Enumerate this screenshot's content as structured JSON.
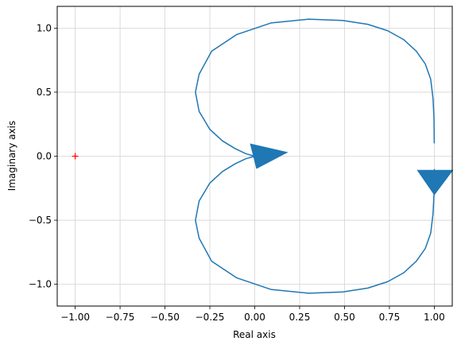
{
  "chart_data": {
    "type": "line",
    "title": "",
    "xlabel": "Real axis",
    "ylabel": "Imaginary axis",
    "xlim": [
      -1.1,
      1.1
    ],
    "ylim": [
      -1.17,
      1.17
    ],
    "grid": true,
    "x_ticks": [
      -1.0,
      -0.75,
      -0.5,
      -0.25,
      0.0,
      0.25,
      0.5,
      0.75,
      1.0
    ],
    "x_tick_labels": [
      "−1.00",
      "−0.75",
      "−0.50",
      "−0.25",
      "0.00",
      "0.25",
      "0.50",
      "0.75",
      "1.00"
    ],
    "y_ticks": [
      -1.0,
      -0.5,
      0.0,
      0.5,
      1.0
    ],
    "y_tick_labels": [
      "−1.0",
      "−0.5",
      "0.0",
      "0.5",
      "1.0"
    ],
    "colors": {
      "curve": "#1f77b4",
      "critical_point": "#ff0000",
      "grid": "#d3d3d3"
    },
    "series": [
      {
        "x": [
          1.0,
          0.998,
          0.993,
          0.98,
          0.95,
          0.9,
          0.83,
          0.74,
          0.63,
          0.49,
          0.3,
          0.09,
          -0.1,
          -0.24,
          -0.31,
          -0.33,
          -0.31,
          -0.25,
          -0.18,
          -0.11,
          -0.05,
          0.0
        ],
        "y": [
          0.1,
          0.3,
          0.45,
          0.6,
          0.72,
          0.82,
          0.91,
          0.98,
          1.03,
          1.06,
          1.07,
          1.04,
          0.95,
          0.82,
          0.64,
          0.5,
          0.35,
          0.21,
          0.12,
          0.06,
          0.02,
          0.0
        ]
      },
      {
        "x": [
          0.0,
          -0.05,
          -0.11,
          -0.18,
          -0.25,
          -0.31,
          -0.33,
          -0.31,
          -0.24,
          -0.1,
          0.09,
          0.3,
          0.49,
          0.63,
          0.74,
          0.83,
          0.9,
          0.95,
          0.98,
          0.993,
          0.998,
          1.0
        ],
        "y": [
          0.0,
          -0.02,
          -0.06,
          -0.12,
          -0.21,
          -0.35,
          -0.5,
          -0.64,
          -0.82,
          -0.95,
          -1.04,
          -1.07,
          -1.06,
          -1.03,
          -0.98,
          -0.91,
          -0.82,
          -0.72,
          -0.6,
          -0.45,
          -0.3,
          -0.1
        ]
      }
    ],
    "arrows": [
      {
        "x": 0.0,
        "y": 0.0,
        "direction": "right"
      },
      {
        "x": 1.0,
        "y": -0.2,
        "direction": "down"
      }
    ],
    "critical_point": {
      "x": -1.0,
      "y": 0.0,
      "marker": "+"
    }
  }
}
